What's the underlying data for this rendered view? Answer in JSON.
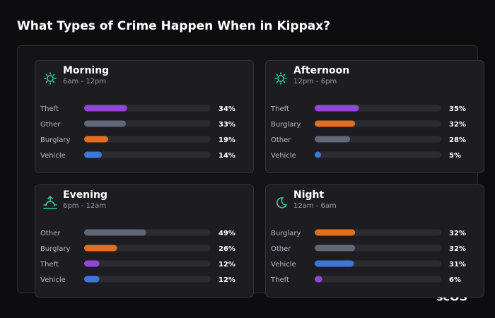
{
  "title": "What Types of Crime Happen When in Kippax?",
  "logo": "scOS",
  "chart_data": [
    {
      "type": "bar",
      "title": "Morning",
      "subtitle": "6am - 12pm",
      "categories": [
        "Theft",
        "Other",
        "Burglary",
        "Vehicle"
      ],
      "values": [
        34,
        33,
        19,
        14
      ],
      "value_labels": [
        "34%",
        "33%",
        "19%",
        "14%"
      ],
      "colors": [
        "#9146d8",
        "#5f6878",
        "#e0701f",
        "#3b78d8"
      ],
      "xlim": [
        0,
        100
      ]
    },
    {
      "type": "bar",
      "title": "Afternoon",
      "subtitle": "12pm - 6pm",
      "categories": [
        "Theft",
        "Burglary",
        "Other",
        "Vehicle"
      ],
      "values": [
        35,
        32,
        28,
        5
      ],
      "value_labels": [
        "35%",
        "32%",
        "28%",
        "5%"
      ],
      "colors": [
        "#9146d8",
        "#e0701f",
        "#5f6878",
        "#3b78d8"
      ],
      "xlim": [
        0,
        100
      ]
    },
    {
      "type": "bar",
      "title": "Evening",
      "subtitle": "6pm - 12am",
      "categories": [
        "Other",
        "Burglary",
        "Theft",
        "Vehicle"
      ],
      "values": [
        49,
        26,
        12,
        12
      ],
      "value_labels": [
        "49%",
        "26%",
        "12%",
        "12%"
      ],
      "colors": [
        "#5f6878",
        "#e0701f",
        "#9146d8",
        "#3b78d8"
      ],
      "xlim": [
        0,
        100
      ]
    },
    {
      "type": "bar",
      "title": "Night",
      "subtitle": "12am - 6am",
      "categories": [
        "Burglary",
        "Other",
        "Vehicle",
        "Theft"
      ],
      "values": [
        32,
        32,
        31,
        6
      ],
      "value_labels": [
        "32%",
        "32%",
        "31%",
        "6%"
      ],
      "colors": [
        "#e0701f",
        "#5f6878",
        "#3b78d8",
        "#9146d8"
      ],
      "xlim": [
        0,
        100
      ]
    }
  ]
}
